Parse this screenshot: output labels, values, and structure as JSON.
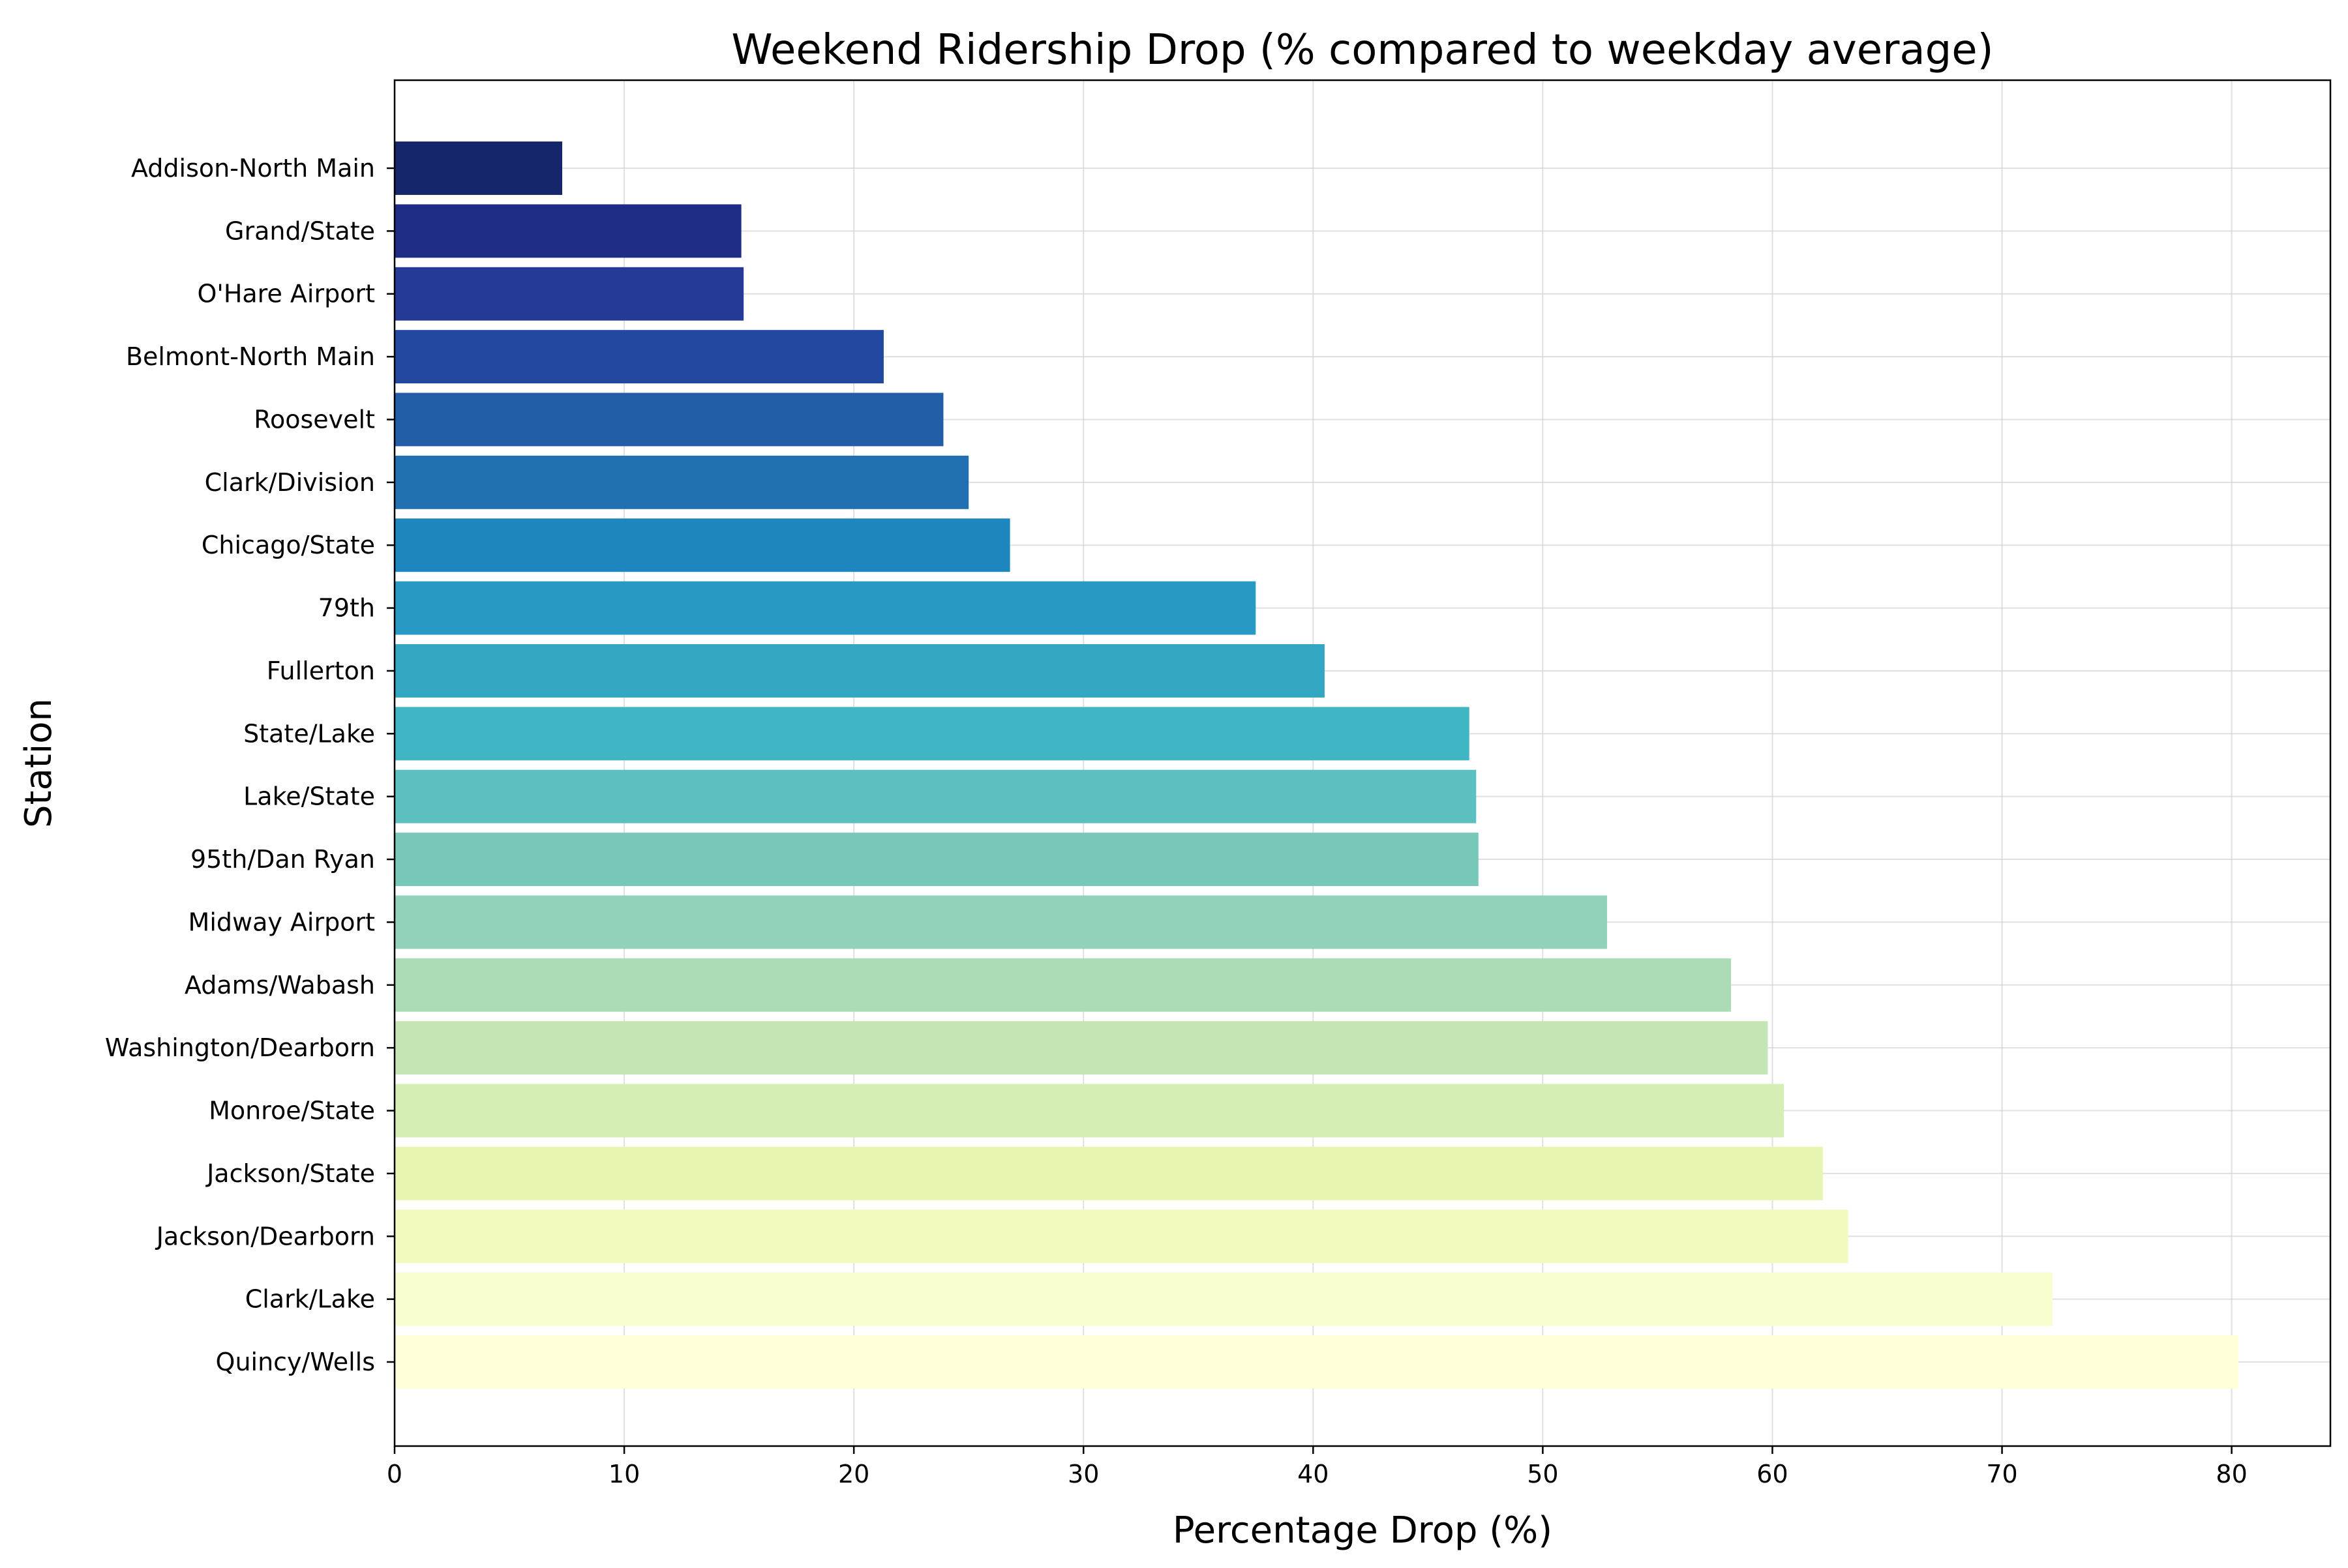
{
  "chart_data": {
    "type": "bar",
    "orientation": "horizontal",
    "title": "Weekend Ridership Drop (% compared to weekday average)",
    "xlabel": "Percentage Drop (%)",
    "ylabel": "Station",
    "xlim": [
      0,
      84.3
    ],
    "xticks": [
      0,
      10,
      20,
      30,
      40,
      50,
      60,
      70,
      80
    ],
    "grid": true,
    "colormap": "YlGnBu",
    "categories": [
      "Addison-North Main",
      "Grand/State",
      "O'Hare Airport",
      "Belmont-North Main",
      "Roosevelt",
      "Clark/Division",
      "Chicago/State",
      "79th",
      "Fullerton",
      "State/Lake",
      "Lake/State",
      "95th/Dan Ryan",
      "Midway Airport",
      "Adams/Wabash",
      "Washington/Dearborn",
      "Monroe/State",
      "Jackson/State",
      "Jackson/Dearborn",
      "Clark/Lake",
      "Quincy/Wells"
    ],
    "values": [
      7.3,
      15.1,
      15.2,
      21.3,
      23.9,
      25.0,
      26.8,
      37.5,
      40.5,
      46.8,
      47.1,
      47.2,
      52.8,
      58.2,
      59.8,
      60.5,
      62.2,
      63.3,
      72.2,
      80.3
    ],
    "colors": [
      "#16266b",
      "#1f2c85",
      "#243a95",
      "#2348a0",
      "#225ea8",
      "#2170b1",
      "#1e86be",
      "#269ac3",
      "#33a6c2",
      "#40b5c4",
      "#5cc0c0",
      "#78c8b9",
      "#91d2b9",
      "#acdcb6",
      "#c4e6b4",
      "#d5eeb3",
      "#e6f5b2",
      "#f2fabe",
      "#f9fdcf",
      "#ffffd9"
    ]
  }
}
